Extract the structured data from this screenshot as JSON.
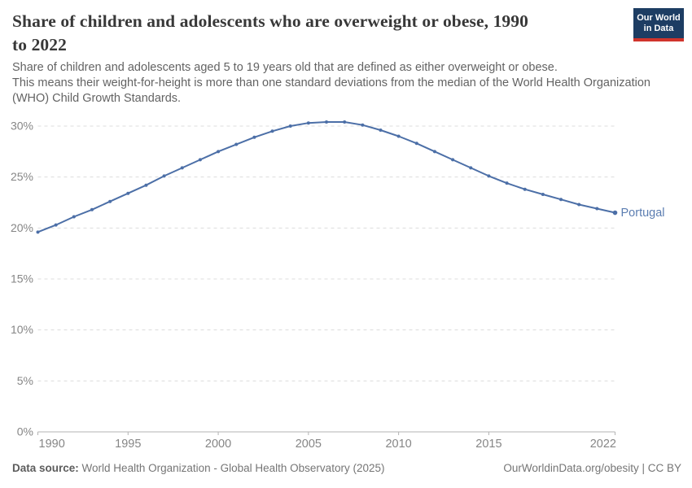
{
  "header": {
    "title_lines": [
      "Share of children and adolescents who are overweight or obese, 1990",
      "to 2022"
    ],
    "subtitle_lines": [
      "Share of children and adolescents aged 5 to 19 years old that are defined as either overweight or obese.",
      "This means their weight-for-height is more than one standard deviations from the median of the World Health Organization",
      "(WHO) Child Growth Standards."
    ],
    "logo": {
      "line1": "Our World",
      "line2": "in Data"
    }
  },
  "chart_data": {
    "type": "line",
    "title": "Share of children and adolescents who are overweight or obese, 1990 to 2022",
    "series": [
      {
        "name": "Portugal",
        "x": [
          1990,
          1991,
          1992,
          1993,
          1994,
          1995,
          1996,
          1997,
          1998,
          1999,
          2000,
          2001,
          2002,
          2003,
          2004,
          2005,
          2006,
          2007,
          2008,
          2009,
          2010,
          2011,
          2012,
          2013,
          2014,
          2015,
          2016,
          2017,
          2018,
          2019,
          2020,
          2021,
          2022
        ],
        "values": [
          19.6,
          20.3,
          21.1,
          21.8,
          22.6,
          23.4,
          24.2,
          25.1,
          25.9,
          26.7,
          27.5,
          28.2,
          28.9,
          29.5,
          30.0,
          30.3,
          30.4,
          30.4,
          30.1,
          29.6,
          29.0,
          28.3,
          27.5,
          26.7,
          25.9,
          25.1,
          24.4,
          23.8,
          23.3,
          22.8,
          22.3,
          21.9,
          21.5
        ]
      }
    ],
    "end_label": "Portugal",
    "xlabel": "",
    "ylabel": "",
    "ylim": [
      0,
      30
    ],
    "y_ticks": [
      0,
      5,
      10,
      15,
      20,
      25,
      30
    ],
    "y_tick_suffix": "%",
    "x_ticks": [
      1990,
      1995,
      2000,
      2005,
      2010,
      2015,
      2022
    ],
    "xlim": [
      1990,
      2022
    ],
    "grid": "dashed horizontal",
    "legend_position": "end-of-line"
  },
  "colors": {
    "line": "#4C6FA7",
    "end_label": "#5b7db1",
    "grid": "#dcdcdc",
    "axis": "#b3b3b3",
    "tick_text": "#868686",
    "logo_bg": "#1d3d63",
    "logo_stripe": "#d0342c"
  },
  "footer": {
    "source_label": "Data source:",
    "source_text": "World Health Organization - Global Health Observatory (2025)",
    "credit": "OurWorldinData.org/obesity | CC BY"
  }
}
